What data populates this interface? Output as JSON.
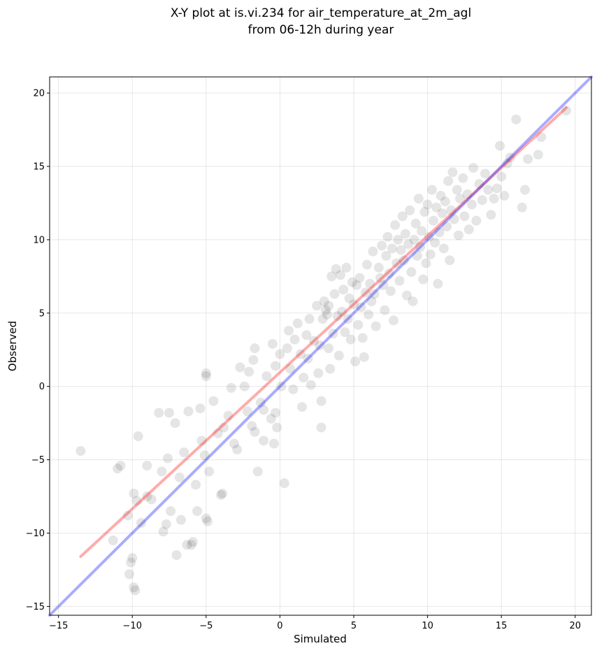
{
  "chart_data": {
    "type": "scatter",
    "title": "X-Y plot at is.vi.234 for air_temperature_at_2m_agl",
    "subtitle": "from 06-12h during year",
    "xlabel": "Simulated",
    "ylabel": "Observed",
    "xlim": [
      -15.6,
      21.1
    ],
    "ylim": [
      -15.6,
      21.1
    ],
    "xticks": [
      -15,
      -10,
      -5,
      0,
      5,
      10,
      15,
      20
    ],
    "yticks": [
      -15,
      -10,
      -5,
      0,
      5,
      10,
      15,
      20
    ],
    "xtick_labels": [
      "−15",
      "−10",
      "−5",
      "0",
      "5",
      "10",
      "15",
      "20"
    ],
    "ytick_labels": [
      "−15",
      "−10",
      "−5",
      "0",
      "5",
      "10",
      "15",
      "20"
    ],
    "grid": true,
    "point_color": "#000000",
    "point_alpha": 0.1,
    "series": [
      {
        "type": "scatter",
        "points": [
          [
            -13.5,
            -4.4
          ],
          [
            -11.3,
            -10.5
          ],
          [
            -11.0,
            -5.6
          ],
          [
            -10.8,
            -5.4
          ],
          [
            -10.2,
            -12.8
          ],
          [
            -10.1,
            -12.0
          ],
          [
            -10.0,
            -11.7
          ],
          [
            -9.9,
            -13.7
          ],
          [
            -9.8,
            -13.9
          ],
          [
            -10.3,
            -8.8
          ],
          [
            -9.9,
            -7.3
          ],
          [
            -9.7,
            -7.8
          ],
          [
            -9.6,
            -3.4
          ],
          [
            -9.4,
            -9.3
          ],
          [
            -9.0,
            -5.4
          ],
          [
            -9.0,
            -7.5
          ],
          [
            -8.7,
            -7.7
          ],
          [
            -8.2,
            -1.8
          ],
          [
            -8.0,
            -5.8
          ],
          [
            -7.9,
            -9.9
          ],
          [
            -7.7,
            -9.4
          ],
          [
            -7.6,
            -4.9
          ],
          [
            -7.5,
            -1.8
          ],
          [
            -7.4,
            -8.5
          ],
          [
            -7.1,
            -2.5
          ],
          [
            -7.0,
            -11.5
          ],
          [
            -6.8,
            -6.2
          ],
          [
            -6.7,
            -9.1
          ],
          [
            -6.5,
            -4.5
          ],
          [
            -6.3,
            -10.8
          ],
          [
            -6.2,
            -1.7
          ],
          [
            -6.0,
            -10.8
          ],
          [
            -5.9,
            -10.6
          ],
          [
            -5.7,
            -6.7
          ],
          [
            -5.6,
            -8.5
          ],
          [
            -5.4,
            -1.5
          ],
          [
            -5.3,
            -3.7
          ],
          [
            -5.1,
            -4.7
          ],
          [
            -5.0,
            -9.0
          ],
          [
            -4.9,
            -9.2
          ],
          [
            -5.0,
            0.9
          ],
          [
            -5.0,
            0.7
          ],
          [
            -4.8,
            -5.8
          ],
          [
            -4.5,
            -1.0
          ],
          [
            -4.2,
            -3.2
          ],
          [
            -4.0,
            -7.4
          ],
          [
            -3.9,
            -7.3
          ],
          [
            -3.8,
            -2.8
          ],
          [
            -3.5,
            -2.0
          ],
          [
            -3.3,
            -0.1
          ],
          [
            -3.1,
            -3.9
          ],
          [
            -2.9,
            -4.3
          ],
          [
            -2.7,
            1.3
          ],
          [
            -2.4,
            0.0
          ],
          [
            -2.2,
            -1.7
          ],
          [
            -2.1,
            1.0
          ],
          [
            -1.9,
            -2.7
          ],
          [
            -1.7,
            -3.1
          ],
          [
            -1.5,
            -5.8
          ],
          [
            -1.8,
            1.8
          ],
          [
            -1.7,
            2.6
          ],
          [
            -1.3,
            -1.1
          ],
          [
            -1.1,
            -1.6
          ],
          [
            -1.1,
            -3.7
          ],
          [
            -0.9,
            0.7
          ],
          [
            -0.6,
            -2.2
          ],
          [
            -0.4,
            -3.9
          ],
          [
            -0.3,
            -1.8
          ],
          [
            -0.2,
            -2.8
          ],
          [
            -0.5,
            2.9
          ],
          [
            -0.3,
            1.4
          ],
          [
            0.0,
            2.2
          ],
          [
            0.1,
            0.0
          ],
          [
            0.3,
            -6.6
          ],
          [
            0.5,
            2.6
          ],
          [
            0.6,
            3.8
          ],
          [
            0.7,
            1.2
          ],
          [
            0.9,
            -0.2
          ],
          [
            1.0,
            3.2
          ],
          [
            1.2,
            4.3
          ],
          [
            1.4,
            2.2
          ],
          [
            1.5,
            -1.4
          ],
          [
            1.6,
            0.6
          ],
          [
            1.8,
            3.5
          ],
          [
            1.9,
            1.9
          ],
          [
            2.0,
            4.6
          ],
          [
            2.1,
            0.1
          ],
          [
            2.3,
            3.1
          ],
          [
            2.5,
            5.5
          ],
          [
            2.6,
            0.9
          ],
          [
            2.7,
            2.8
          ],
          [
            2.8,
            -2.8
          ],
          [
            2.8,
            -1.0
          ],
          [
            2.9,
            4.6
          ],
          [
            3.0,
            5.8
          ],
          [
            3.1,
            5.2
          ],
          [
            3.2,
            4.9
          ],
          [
            3.3,
            5.5
          ],
          [
            3.3,
            2.6
          ],
          [
            3.4,
            1.2
          ],
          [
            3.5,
            7.5
          ],
          [
            3.6,
            3.6
          ],
          [
            3.7,
            6.3
          ],
          [
            3.8,
            8.0
          ],
          [
            3.9,
            4.8
          ],
          [
            4.0,
            2.1
          ],
          [
            4.1,
            7.6
          ],
          [
            4.2,
            5.1
          ],
          [
            4.3,
            6.6
          ],
          [
            4.4,
            3.7
          ],
          [
            4.5,
            8.1
          ],
          [
            4.6,
            4.6
          ],
          [
            4.7,
            6.0
          ],
          [
            4.8,
            3.2
          ],
          [
            4.9,
            7.1
          ],
          [
            5.0,
            5.6
          ],
          [
            5.1,
            1.7
          ],
          [
            5.2,
            6.9
          ],
          [
            5.3,
            4.2
          ],
          [
            5.4,
            7.4
          ],
          [
            5.5,
            5.4
          ],
          [
            5.6,
            3.3
          ],
          [
            5.7,
            2.0
          ],
          [
            5.8,
            6.4
          ],
          [
            5.9,
            8.3
          ],
          [
            6.0,
            4.9
          ],
          [
            6.1,
            7.0
          ],
          [
            6.2,
            5.8
          ],
          [
            6.3,
            9.2
          ],
          [
            6.4,
            6.3
          ],
          [
            6.5,
            4.1
          ],
          [
            6.7,
            8.1
          ],
          [
            6.8,
            7.4
          ],
          [
            6.9,
            9.6
          ],
          [
            7.0,
            6.9
          ],
          [
            7.1,
            5.2
          ],
          [
            7.2,
            8.9
          ],
          [
            7.3,
            10.2
          ],
          [
            7.4,
            7.7
          ],
          [
            7.5,
            6.5
          ],
          [
            7.6,
            9.4
          ],
          [
            7.7,
            4.5
          ],
          [
            7.8,
            11.0
          ],
          [
            7.9,
            8.4
          ],
          [
            8.0,
            10.0
          ],
          [
            8.1,
            7.2
          ],
          [
            8.2,
            9.3
          ],
          [
            8.3,
            11.6
          ],
          [
            8.4,
            8.6
          ],
          [
            8.5,
            10.4
          ],
          [
            8.6,
            6.2
          ],
          [
            8.7,
            9.7
          ],
          [
            8.8,
            12.0
          ],
          [
            8.9,
            7.8
          ],
          [
            9.0,
            5.8
          ],
          [
            9.1,
            10.0
          ],
          [
            9.2,
            11.1
          ],
          [
            9.3,
            8.9
          ],
          [
            9.4,
            12.8
          ],
          [
            9.5,
            9.5
          ],
          [
            9.6,
            10.6
          ],
          [
            9.7,
            7.3
          ],
          [
            9.8,
            11.9
          ],
          [
            9.9,
            8.4
          ],
          [
            10.0,
            12.4
          ],
          [
            10.1,
            10.2
          ],
          [
            10.2,
            9.0
          ],
          [
            10.3,
            13.4
          ],
          [
            10.4,
            11.3
          ],
          [
            10.5,
            9.8
          ],
          [
            10.6,
            12.2
          ],
          [
            10.7,
            7.0
          ],
          [
            10.8,
            10.5
          ],
          [
            10.9,
            13.0
          ],
          [
            11.0,
            11.8
          ],
          [
            11.1,
            9.4
          ],
          [
            11.2,
            12.6
          ],
          [
            11.3,
            10.9
          ],
          [
            11.4,
            14.0
          ],
          [
            11.5,
            8.6
          ],
          [
            11.6,
            12.0
          ],
          [
            11.7,
            14.6
          ],
          [
            11.8,
            11.4
          ],
          [
            12.0,
            13.4
          ],
          [
            12.1,
            10.3
          ],
          [
            12.2,
            12.8
          ],
          [
            12.4,
            14.2
          ],
          [
            12.5,
            11.6
          ],
          [
            12.7,
            13.1
          ],
          [
            12.8,
            10.7
          ],
          [
            13.0,
            12.4
          ],
          [
            13.1,
            14.9
          ],
          [
            13.3,
            11.3
          ],
          [
            13.5,
            13.8
          ],
          [
            13.7,
            12.7
          ],
          [
            13.9,
            14.5
          ],
          [
            14.1,
            13.4
          ],
          [
            14.3,
            11.7
          ],
          [
            14.5,
            12.8
          ],
          [
            14.7,
            13.5
          ],
          [
            14.9,
            16.4
          ],
          [
            15.0,
            14.3
          ],
          [
            15.2,
            13.0
          ],
          [
            15.4,
            15.2
          ],
          [
            15.6,
            15.6
          ],
          [
            16.0,
            18.2
          ],
          [
            16.4,
            12.2
          ],
          [
            16.6,
            13.4
          ],
          [
            16.8,
            15.5
          ],
          [
            17.5,
            15.8
          ],
          [
            17.7,
            17.0
          ],
          [
            19.4,
            18.8
          ]
        ]
      },
      {
        "type": "line",
        "name": "",
        "color": "#ff0000",
        "alpha": 0.33,
        "points": [
          [
            -13.5,
            -11.6
          ],
          [
            19.4,
            19.0
          ]
        ]
      },
      {
        "type": "line",
        "name": "",
        "color": "#0000ff",
        "alpha": 0.33,
        "points": [
          [
            -15.6,
            -15.6
          ],
          [
            21.1,
            21.1
          ]
        ]
      }
    ]
  }
}
